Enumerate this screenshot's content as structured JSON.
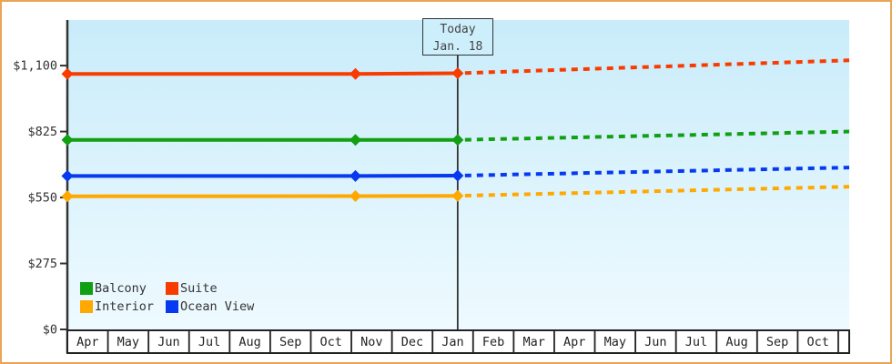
{
  "frame": {
    "border_color": "#e9a455",
    "plot_bg_top": "#c9ecfa",
    "plot_bg_bottom": "#eefaff",
    "axis_color": "#333333"
  },
  "today_annotation": {
    "line1": "Today",
    "line2": "Jan. 18"
  },
  "chart_data": {
    "type": "line",
    "title": "",
    "xlabel": "",
    "ylabel": "",
    "grid": false,
    "legend_position": "bottom-left",
    "categories": [
      "Apr",
      "May",
      "Jun",
      "Jul",
      "Aug",
      "Sep",
      "Oct",
      "Nov",
      "Dec",
      "Jan",
      "Feb",
      "Mar",
      "Apr",
      "May",
      "Jun",
      "Jul",
      "Aug",
      "Sep",
      "Oct"
    ],
    "yticks": [
      {
        "value": 0,
        "label": "$0"
      },
      {
        "value": 275,
        "label": "$275"
      },
      {
        "value": 550,
        "label": "$550"
      },
      {
        "value": 825,
        "label": "$825"
      },
      {
        "value": 1100,
        "label": "$1,100"
      }
    ],
    "ylim": [
      0,
      1290
    ],
    "x_total_months": 19.27,
    "today_x_months": 9.62,
    "projection_style": "dashed",
    "series": [
      {
        "name": "Balcony",
        "color": "#11a011",
        "history": [
          {
            "x": 0,
            "value": 790
          },
          {
            "x": 7.1,
            "value": 790
          },
          {
            "x": 9.62,
            "value": 790
          }
        ],
        "projection": [
          {
            "x": 9.62,
            "value": 790
          },
          {
            "x": 19.27,
            "value": 825
          }
        ]
      },
      {
        "name": "Suite",
        "color": "#f83c00",
        "history": [
          {
            "x": 0,
            "value": 1065
          },
          {
            "x": 7.1,
            "value": 1065
          },
          {
            "x": 9.62,
            "value": 1068
          }
        ],
        "projection": [
          {
            "x": 9.62,
            "value": 1068
          },
          {
            "x": 19.27,
            "value": 1122
          }
        ]
      },
      {
        "name": "Interior",
        "color": "#ffa800",
        "history": [
          {
            "x": 0,
            "value": 555
          },
          {
            "x": 7.1,
            "value": 556
          },
          {
            "x": 9.62,
            "value": 557
          }
        ],
        "projection": [
          {
            "x": 9.62,
            "value": 557
          },
          {
            "x": 19.27,
            "value": 595
          }
        ]
      },
      {
        "name": "Ocean View",
        "color": "#0639f0",
        "history": [
          {
            "x": 0,
            "value": 640
          },
          {
            "x": 7.1,
            "value": 640
          },
          {
            "x": 9.62,
            "value": 641
          }
        ],
        "projection": [
          {
            "x": 9.62,
            "value": 641
          },
          {
            "x": 19.27,
            "value": 675
          }
        ]
      }
    ]
  }
}
